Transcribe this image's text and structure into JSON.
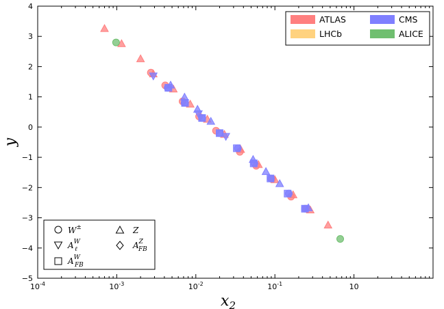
{
  "chart_data": {
    "type": "scatter",
    "title": "",
    "xlabel": "x",
    "xlabel_sub": "2",
    "ylabel": "y",
    "xscale": "log",
    "xlim": [
      0.0001,
      10
    ],
    "ylim": [
      -5,
      4
    ],
    "x_ticks": [
      {
        "base": "10",
        "exp": "-4"
      },
      {
        "base": "10",
        "exp": "-3"
      },
      {
        "base": "10",
        "exp": "-2"
      },
      {
        "base": "10",
        "exp": "-1"
      },
      {
        "base": "10",
        "exp": ""
      }
    ],
    "y_ticks": [
      "4",
      "3",
      "2",
      "1",
      "0",
      "−1",
      "−2",
      "−3",
      "−4",
      "−5"
    ],
    "grid": false,
    "experiments_legend": {
      "position": "top-right",
      "entries": [
        {
          "name": "ATLAS",
          "color": "#ff7f7f"
        },
        {
          "name": "LHCb",
          "color": "#ffd27f"
        },
        {
          "name": "CMS",
          "color": "#7f7fff"
        },
        {
          "name": "ALICE",
          "color": "#70bf70"
        }
      ]
    },
    "observables_legend": {
      "position": "bottom-left",
      "entries": [
        {
          "marker": "circle",
          "base": "W",
          "sup": "±",
          "sub": ""
        },
        {
          "marker": "triangle-up",
          "base": "Z",
          "sup": "",
          "sub": ""
        },
        {
          "marker": "triangle-down",
          "base": "A",
          "sup": "W",
          "sub": "ℓ"
        },
        {
          "marker": "diamond",
          "base": "A",
          "sup": "Z",
          "sub": "FB"
        },
        {
          "marker": "square",
          "base": "A",
          "sup": "W",
          "sub": "FB"
        }
      ]
    },
    "series": [
      {
        "experiment": "ATLAS",
        "observable": "Z",
        "marker": "triangle-up",
        "color": "#ff7f7f",
        "points": [
          [
            0.0007,
            3.25
          ],
          [
            0.00115,
            2.75
          ],
          [
            0.002,
            2.25
          ],
          [
            0.0029,
            1.75
          ],
          [
            0.0052,
            1.25
          ],
          [
            0.0085,
            0.75
          ],
          [
            0.014,
            0.25
          ],
          [
            0.023,
            -0.25
          ],
          [
            0.037,
            -0.75
          ],
          [
            0.062,
            -1.25
          ],
          [
            0.1,
            -1.75
          ],
          [
            0.17,
            -2.25
          ],
          [
            0.28,
            -2.75
          ],
          [
            0.47,
            -3.25
          ]
        ]
      },
      {
        "experiment": "ATLAS",
        "observable": "W±",
        "marker": "circle",
        "color": "#ff7f7f",
        "points": [
          [
            0.0027,
            1.8
          ],
          [
            0.0041,
            1.38
          ],
          [
            0.0068,
            0.85
          ],
          [
            0.011,
            0.35
          ],
          [
            0.018,
            -0.12
          ],
          [
            0.036,
            -0.82
          ],
          [
            0.058,
            -1.28
          ],
          [
            0.092,
            -1.72
          ],
          [
            0.16,
            -2.3
          ],
          [
            0.25,
            -2.7
          ]
        ]
      },
      {
        "experiment": "CMS",
        "observable": "W±",
        "marker": "circle",
        "color": "#7f7fff",
        "points": [
          [
            0.0044,
            1.3
          ],
          [
            0.0072,
            0.8
          ],
          [
            0.012,
            0.3
          ],
          [
            0.02,
            -0.2
          ],
          [
            0.034,
            -0.7
          ],
          [
            0.055,
            -1.2
          ],
          [
            0.089,
            -1.7
          ],
          [
            0.15,
            -2.2
          ],
          [
            0.24,
            -2.7
          ]
        ]
      },
      {
        "experiment": "CMS",
        "observable": "A_FB^W",
        "marker": "square",
        "color": "#7f7fff",
        "points": [
          [
            0.0045,
            1.3
          ],
          [
            0.0073,
            0.8
          ],
          [
            0.012,
            0.3
          ],
          [
            0.02,
            -0.2
          ],
          [
            0.033,
            -0.7
          ],
          [
            0.054,
            -1.2
          ],
          [
            0.088,
            -1.7
          ],
          [
            0.145,
            -2.2
          ],
          [
            0.24,
            -2.7
          ]
        ]
      },
      {
        "experiment": "CMS",
        "observable": "Z",
        "marker": "triangle-up",
        "color": "#7f7fff",
        "points": [
          [
            0.0048,
            1.38
          ],
          [
            0.0072,
            0.98
          ],
          [
            0.0105,
            0.58
          ],
          [
            0.0155,
            0.18
          ],
          [
            0.053,
            -1.08
          ],
          [
            0.077,
            -1.48
          ],
          [
            0.115,
            -1.88
          ],
          [
            0.265,
            -2.68
          ]
        ]
      },
      {
        "experiment": "CMS",
        "observable": "A_l^W",
        "marker": "triangle-down",
        "color": "#7f7fff",
        "points": [
          [
            0.0029,
            1.7
          ],
          [
            0.0108,
            0.45
          ],
          [
            0.024,
            -0.3
          ]
        ]
      },
      {
        "experiment": "ALICE",
        "observable": "W±",
        "marker": "circle",
        "color": "#70bf70",
        "points": [
          [
            0.00098,
            2.8
          ],
          [
            0.67,
            -3.7
          ]
        ]
      }
    ]
  }
}
